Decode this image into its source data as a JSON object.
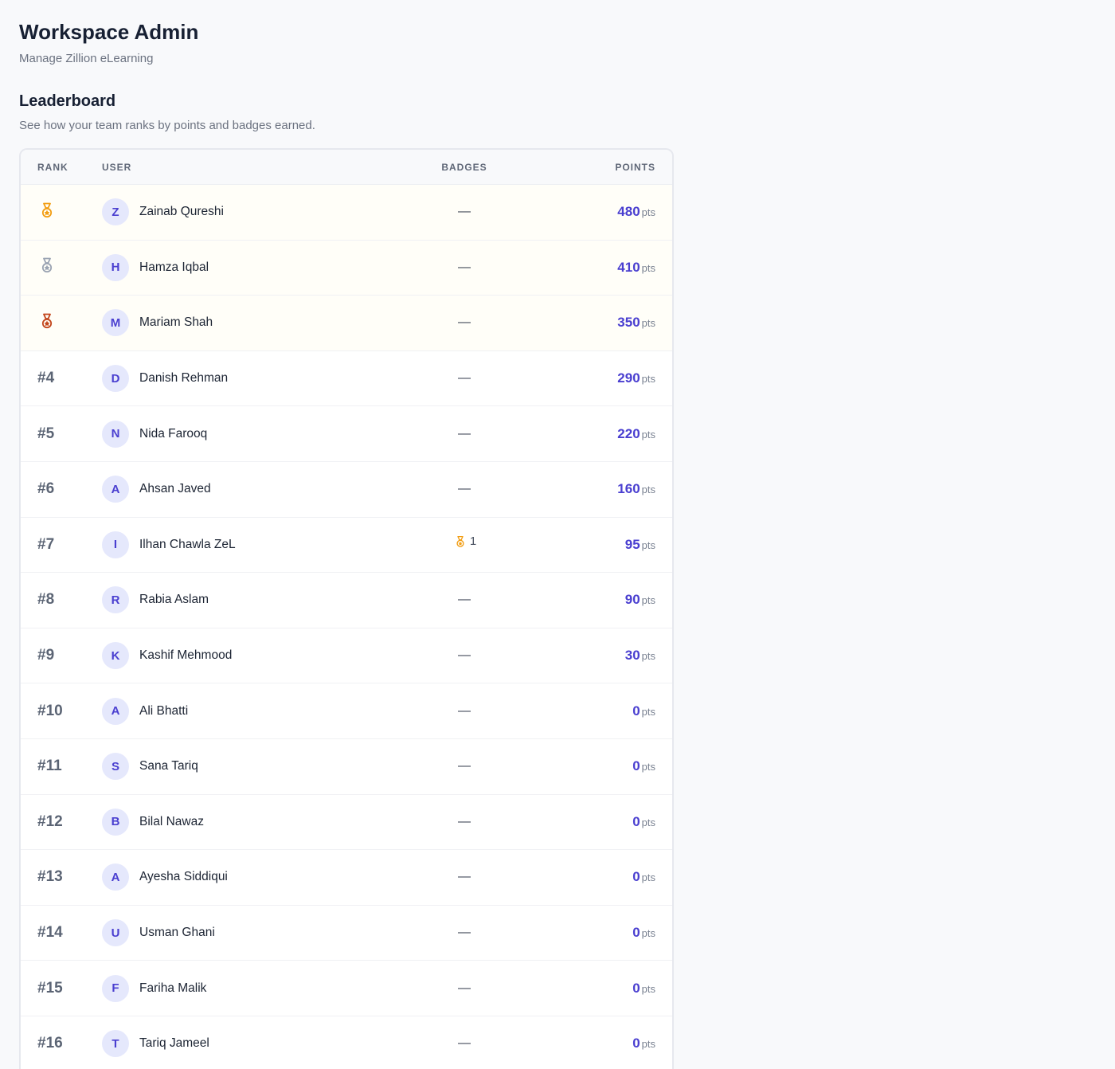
{
  "header": {
    "title": "Workspace Admin",
    "subtitle": "Manage Zillion eLearning"
  },
  "leaderboard": {
    "title": "Leaderboard",
    "subtitle": "See how your team ranks by points and badges earned.",
    "columns": {
      "rank": "RANK",
      "user": "USER",
      "badges": "BADGES",
      "points": "POINTS"
    },
    "points_unit": "pts",
    "empty_badges": "—",
    "colors": {
      "gold": "#f29d12",
      "silver": "#9aa3b2",
      "bronze": "#c2451b",
      "accent": "#4a3fd0"
    },
    "rows": [
      {
        "rank": "",
        "medal": "gold",
        "initial": "Z",
        "name": "Zainab Qureshi",
        "badges": "",
        "points": "480"
      },
      {
        "rank": "",
        "medal": "silver",
        "initial": "H",
        "name": "Hamza Iqbal",
        "badges": "",
        "points": "410"
      },
      {
        "rank": "",
        "medal": "bronze",
        "initial": "M",
        "name": "Mariam Shah",
        "badges": "",
        "points": "350"
      },
      {
        "rank": "#4",
        "medal": "",
        "initial": "D",
        "name": "Danish Rehman",
        "badges": "",
        "points": "290"
      },
      {
        "rank": "#5",
        "medal": "",
        "initial": "N",
        "name": "Nida Farooq",
        "badges": "",
        "points": "220"
      },
      {
        "rank": "#6",
        "medal": "",
        "initial": "A",
        "name": "Ahsan Javed",
        "badges": "",
        "points": "160"
      },
      {
        "rank": "#7",
        "medal": "",
        "initial": "I",
        "name": "Ilhan Chawla ZeL",
        "badges": "1",
        "points": "95"
      },
      {
        "rank": "#8",
        "medal": "",
        "initial": "R",
        "name": "Rabia Aslam",
        "badges": "",
        "points": "90"
      },
      {
        "rank": "#9",
        "medal": "",
        "initial": "K",
        "name": "Kashif Mehmood",
        "badges": "",
        "points": "30"
      },
      {
        "rank": "#10",
        "medal": "",
        "initial": "A",
        "name": "Ali Bhatti",
        "badges": "",
        "points": "0"
      },
      {
        "rank": "#11",
        "medal": "",
        "initial": "S",
        "name": "Sana Tariq",
        "badges": "",
        "points": "0"
      },
      {
        "rank": "#12",
        "medal": "",
        "initial": "B",
        "name": "Bilal Nawaz",
        "badges": "",
        "points": "0"
      },
      {
        "rank": "#13",
        "medal": "",
        "initial": "A",
        "name": "Ayesha Siddiqui",
        "badges": "",
        "points": "0"
      },
      {
        "rank": "#14",
        "medal": "",
        "initial": "U",
        "name": "Usman Ghani",
        "badges": "",
        "points": "0"
      },
      {
        "rank": "#15",
        "medal": "",
        "initial": "F",
        "name": "Fariha Malik",
        "badges": "",
        "points": "0"
      },
      {
        "rank": "#16",
        "medal": "",
        "initial": "T",
        "name": "Tariq Jameel",
        "badges": "",
        "points": "0"
      }
    ]
  }
}
